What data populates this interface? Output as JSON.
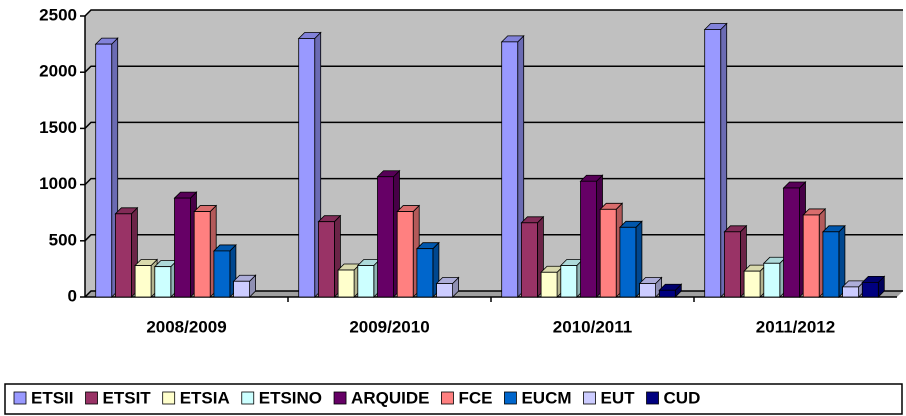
{
  "chart_data": {
    "type": "bar3d",
    "categories": [
      "2008/2009",
      "2009/2010",
      "2010/2011",
      "2011/2012"
    ],
    "series": [
      {
        "name": "ETSII",
        "color": "#9999ff",
        "values": [
          2250,
          2300,
          2270,
          2380
        ]
      },
      {
        "name": "ETSIT",
        "color": "#993366",
        "values": [
          740,
          670,
          660,
          580
        ]
      },
      {
        "name": "ETSIA",
        "color": "#ffffcc",
        "values": [
          280,
          240,
          220,
          230
        ]
      },
      {
        "name": "ETSINO",
        "color": "#ccffff",
        "values": [
          270,
          280,
          280,
          300
        ]
      },
      {
        "name": "ARQUIDE",
        "color": "#660066",
        "values": [
          880,
          1070,
          1030,
          970
        ]
      },
      {
        "name": "FCE",
        "color": "#ff8080",
        "values": [
          760,
          760,
          780,
          730
        ]
      },
      {
        "name": "EUCM",
        "color": "#0066cc",
        "values": [
          410,
          430,
          620,
          580
        ]
      },
      {
        "name": "EUT",
        "color": "#ccccff",
        "values": [
          140,
          120,
          120,
          90
        ]
      },
      {
        "name": "CUD",
        "color": "#000080",
        "values": [
          null,
          null,
          60,
          130
        ]
      }
    ],
    "ylim": [
      0,
      2500
    ],
    "yticks": [
      0,
      500,
      1000,
      1500,
      2000,
      2500
    ],
    "grid": true,
    "legend": "bottom"
  }
}
